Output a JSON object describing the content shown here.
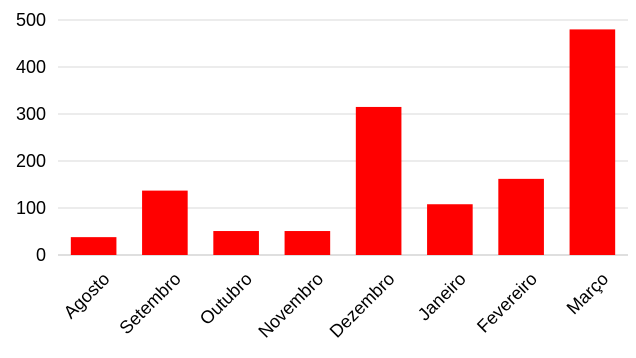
{
  "chart_data": {
    "type": "bar",
    "categories": [
      "Agosto",
      "Setembro",
      "Outubro",
      "Novembro",
      "Dezembro",
      "Janeiro",
      "Fevereiro",
      "Março"
    ],
    "values": [
      38,
      137,
      51,
      51,
      315,
      108,
      162,
      480
    ],
    "ylim": [
      0,
      500
    ],
    "yticks": [
      0,
      100,
      200,
      300,
      400,
      500
    ],
    "grid": true,
    "legend": "none",
    "colors": {
      "bar": "#ff0000",
      "grid": "#d9d9d9",
      "axis": "#bfbfbf"
    }
  }
}
